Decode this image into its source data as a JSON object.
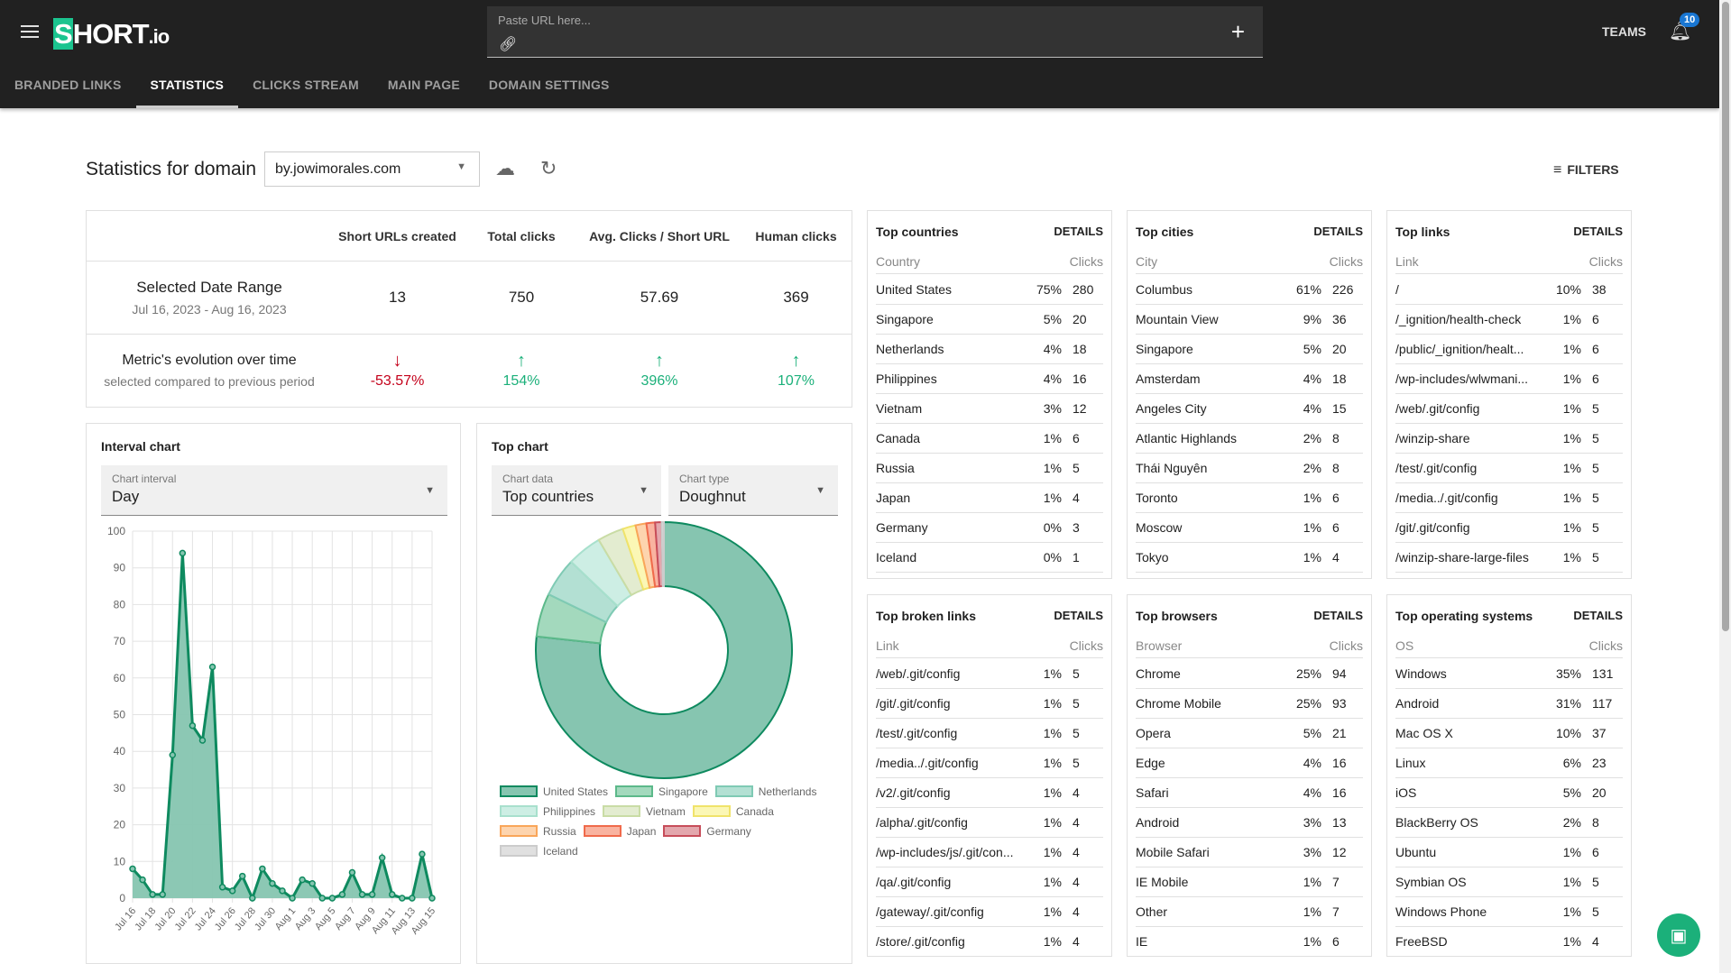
{
  "header": {
    "logo": "SHORT.io",
    "url_placeholder": "Paste URL here...",
    "teams": "TEAMS",
    "notifications": "10"
  },
  "tabs": [
    {
      "label": "BRANDED LINKS"
    },
    {
      "label": "STATISTICS",
      "active": true
    },
    {
      "label": "CLICKS STREAM"
    },
    {
      "label": "MAIN PAGE"
    },
    {
      "label": "DOMAIN SETTINGS"
    }
  ],
  "page": {
    "title": "Statistics for domain",
    "domain": "by.jowimorales.com",
    "filters": "FILTERS"
  },
  "summary": {
    "columns": [
      "Short URLs created",
      "Total clicks",
      "Avg. Clicks / Short URL",
      "Human clicks"
    ],
    "range_label": "Selected Date Range",
    "range_dates": "Jul 16, 2023 - Aug 16, 2023",
    "values": [
      "13",
      "750",
      "57.69",
      "369"
    ],
    "evolution_label": "Metric's evolution over time",
    "evolution_sub": "selected compared to previous period",
    "evolution": [
      {
        "value": "-53.57%",
        "dir": "down"
      },
      {
        "value": "154%",
        "dir": "up"
      },
      {
        "value": "396%",
        "dir": "up"
      },
      {
        "value": "107%",
        "dir": "up"
      }
    ]
  },
  "interval": {
    "title": "Interval chart",
    "select_label": "Chart interval",
    "select_value": "Day"
  },
  "topchart": {
    "title": "Top chart",
    "data_label": "Chart data",
    "data_value": "Top countries",
    "type_label": "Chart type",
    "type_value": "Doughnut"
  },
  "chart_data": [
    {
      "type": "area",
      "x": [
        "Jul 16",
        "Jul 17",
        "Jul 18",
        "Jul 19",
        "Jul 20",
        "Jul 21",
        "Jul 22",
        "Jul 23",
        "Jul 24",
        "Jul 25",
        "Jul 26",
        "Jul 27",
        "Jul 28",
        "Jul 29",
        "Jul 30",
        "Jul 31",
        "Aug 1",
        "Aug 2",
        "Aug 3",
        "Aug 4",
        "Aug 5",
        "Aug 6",
        "Aug 7",
        "Aug 8",
        "Aug 9",
        "Aug 10",
        "Aug 11",
        "Aug 12",
        "Aug 13",
        "Aug 14",
        "Aug 15"
      ],
      "values": [
        8,
        5,
        1,
        1,
        39,
        94,
        47,
        43,
        63,
        3,
        2,
        6,
        0,
        8,
        4,
        2,
        0,
        5,
        4,
        0,
        0,
        1,
        7,
        1,
        1,
        11,
        1,
        0,
        0,
        12,
        0
      ],
      "ylim": [
        0,
        100
      ],
      "yticks": [
        0,
        10,
        20,
        30,
        40,
        50,
        60,
        70,
        80,
        90,
        100
      ],
      "grid": true,
      "color": "#0e8a5f",
      "fill": "#86c5b0"
    },
    {
      "type": "pie",
      "variant": "doughnut",
      "legend": "bottom",
      "categories": [
        "United States",
        "Singapore",
        "Netherlands",
        "Philippines",
        "Vietnam",
        "Canada",
        "Russia",
        "Japan",
        "Germany",
        "Iceland"
      ],
      "values": [
        280,
        20,
        18,
        16,
        12,
        6,
        5,
        4,
        3,
        1
      ],
      "colors": [
        "#86c5b0",
        "#a3d9bd",
        "#b3e0d3",
        "#cdeee4",
        "#e3ecd0",
        "#fbf7b5",
        "#fdd4ae",
        "#f9b3a0",
        "#e3a7ad",
        "#e0e0e0"
      ],
      "borders": [
        "#0e8a5f",
        "#5cb98a",
        "#7fcab4",
        "#a8e0cd",
        "#c9dca5",
        "#f0e36a",
        "#f9a65a",
        "#f06a4b",
        "#c74d5a",
        "#cccccc"
      ]
    }
  ],
  "tables": [
    {
      "title": "Top countries",
      "details": "DETAILS",
      "col": "Country",
      "clicks": "Clicks",
      "rows": [
        [
          "United States",
          "75%",
          "280"
        ],
        [
          "Singapore",
          "5%",
          "20"
        ],
        [
          "Netherlands",
          "4%",
          "18"
        ],
        [
          "Philippines",
          "4%",
          "16"
        ],
        [
          "Vietnam",
          "3%",
          "12"
        ],
        [
          "Canada",
          "1%",
          "6"
        ],
        [
          "Russia",
          "1%",
          "5"
        ],
        [
          "Japan",
          "1%",
          "4"
        ],
        [
          "Germany",
          "0%",
          "3"
        ],
        [
          "Iceland",
          "0%",
          "1"
        ]
      ]
    },
    {
      "title": "Top cities",
      "details": "DETAILS",
      "col": "City",
      "clicks": "Clicks",
      "rows": [
        [
          "Columbus",
          "61%",
          "226"
        ],
        [
          "Mountain View",
          "9%",
          "36"
        ],
        [
          "Singapore",
          "5%",
          "20"
        ],
        [
          "Amsterdam",
          "4%",
          "18"
        ],
        [
          "Angeles City",
          "4%",
          "15"
        ],
        [
          "Atlantic Highlands",
          "2%",
          "8"
        ],
        [
          "Thái Nguyên",
          "2%",
          "8"
        ],
        [
          "Toronto",
          "1%",
          "6"
        ],
        [
          "Moscow",
          "1%",
          "6"
        ],
        [
          "Tokyo",
          "1%",
          "4"
        ]
      ]
    },
    {
      "title": "Top links",
      "details": "DETAILS",
      "col": "Link",
      "clicks": "Clicks",
      "rows": [
        [
          "/",
          "10%",
          "38"
        ],
        [
          "/_ignition/health-check",
          "1%",
          "6"
        ],
        [
          "/public/_ignition/healt...",
          "1%",
          "6"
        ],
        [
          "/wp-includes/wlwmani...",
          "1%",
          "6"
        ],
        [
          "/web/.git/config",
          "1%",
          "5"
        ],
        [
          "/winzip-share",
          "1%",
          "5"
        ],
        [
          "/test/.git/config",
          "1%",
          "5"
        ],
        [
          "/media../.git/config",
          "1%",
          "5"
        ],
        [
          "/git/.git/config",
          "1%",
          "5"
        ],
        [
          "/winzip-share-large-files",
          "1%",
          "5"
        ]
      ]
    },
    {
      "title": "Top broken links",
      "details": "DETAILS",
      "col": "Link",
      "clicks": "Clicks",
      "rows": [
        [
          "/web/.git/config",
          "1%",
          "5"
        ],
        [
          "/git/.git/config",
          "1%",
          "5"
        ],
        [
          "/test/.git/config",
          "1%",
          "5"
        ],
        [
          "/media../.git/config",
          "1%",
          "5"
        ],
        [
          "/v2/.git/config",
          "1%",
          "4"
        ],
        [
          "/alpha/.git/config",
          "1%",
          "4"
        ],
        [
          "/wp-includes/js/.git/con...",
          "1%",
          "4"
        ],
        [
          "/qa/.git/config",
          "1%",
          "4"
        ],
        [
          "/gateway/.git/config",
          "1%",
          "4"
        ],
        [
          "/store/.git/config",
          "1%",
          "4"
        ]
      ]
    },
    {
      "title": "Top browsers",
      "details": "DETAILS",
      "col": "Browser",
      "clicks": "Clicks",
      "rows": [
        [
          "Chrome",
          "25%",
          "94"
        ],
        [
          "Chrome Mobile",
          "25%",
          "93"
        ],
        [
          "Opera",
          "5%",
          "21"
        ],
        [
          "Edge",
          "4%",
          "16"
        ],
        [
          "Safari",
          "4%",
          "16"
        ],
        [
          "Android",
          "3%",
          "13"
        ],
        [
          "Mobile Safari",
          "3%",
          "12"
        ],
        [
          "IE Mobile",
          "1%",
          "7"
        ],
        [
          "Other",
          "1%",
          "7"
        ],
        [
          "IE",
          "1%",
          "6"
        ]
      ]
    },
    {
      "title": "Top operating systems",
      "details": "DETAILS",
      "col": "OS",
      "clicks": "Clicks",
      "rows": [
        [
          "Windows",
          "35%",
          "131"
        ],
        [
          "Android",
          "31%",
          "117"
        ],
        [
          "Mac OS X",
          "10%",
          "37"
        ],
        [
          "Linux",
          "6%",
          "23"
        ],
        [
          "iOS",
          "5%",
          "20"
        ],
        [
          "BlackBerry OS",
          "2%",
          "8"
        ],
        [
          "Ubuntu",
          "1%",
          "6"
        ],
        [
          "Symbian OS",
          "1%",
          "5"
        ],
        [
          "Windows Phone",
          "1%",
          "5"
        ],
        [
          "FreeBSD",
          "1%",
          "4"
        ]
      ]
    }
  ]
}
